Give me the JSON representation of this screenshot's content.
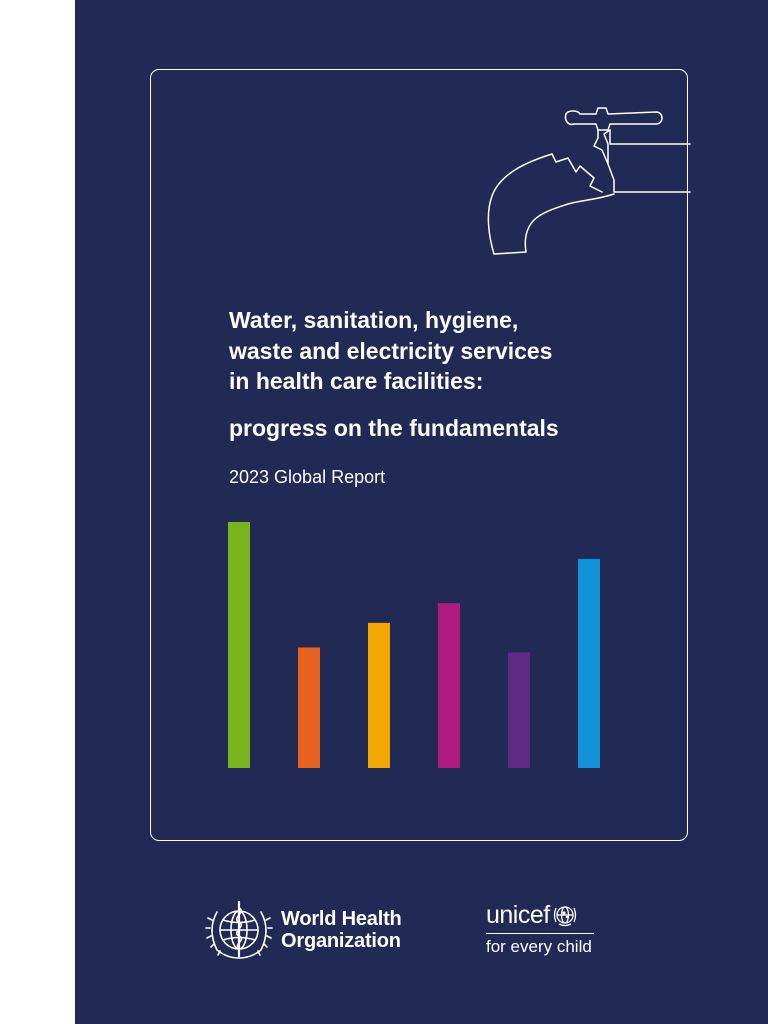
{
  "colors": {
    "background": "#ffffff",
    "cover": "#212a55",
    "text": "#ffffff"
  },
  "cover": {
    "title_lines": [
      "Water, sanitation, hygiene,",
      "waste and electricity services",
      "in health care facilities:"
    ],
    "subtitle": "progress on the fundamentals",
    "report_label": "2023 Global Report"
  },
  "illustration": {
    "icon": "water-tap-outline"
  },
  "decorative_bars": [
    {
      "level": 1.0,
      "color": "#7ab51d"
    },
    {
      "level": 0.49,
      "color": "#e7601e"
    },
    {
      "level": 0.59,
      "color": "#f4a600"
    },
    {
      "level": 0.67,
      "color": "#b0197d"
    },
    {
      "level": 0.47,
      "color": "#5f2a84"
    },
    {
      "level": 0.85,
      "color": "#1192d8"
    }
  ],
  "logos": {
    "who": {
      "icon": "who-emblem",
      "line1": "World Health",
      "line2": "Organization"
    },
    "unicef": {
      "icon": "unicef-globe",
      "wordmark": "unicef",
      "tagline": "for every child"
    }
  }
}
